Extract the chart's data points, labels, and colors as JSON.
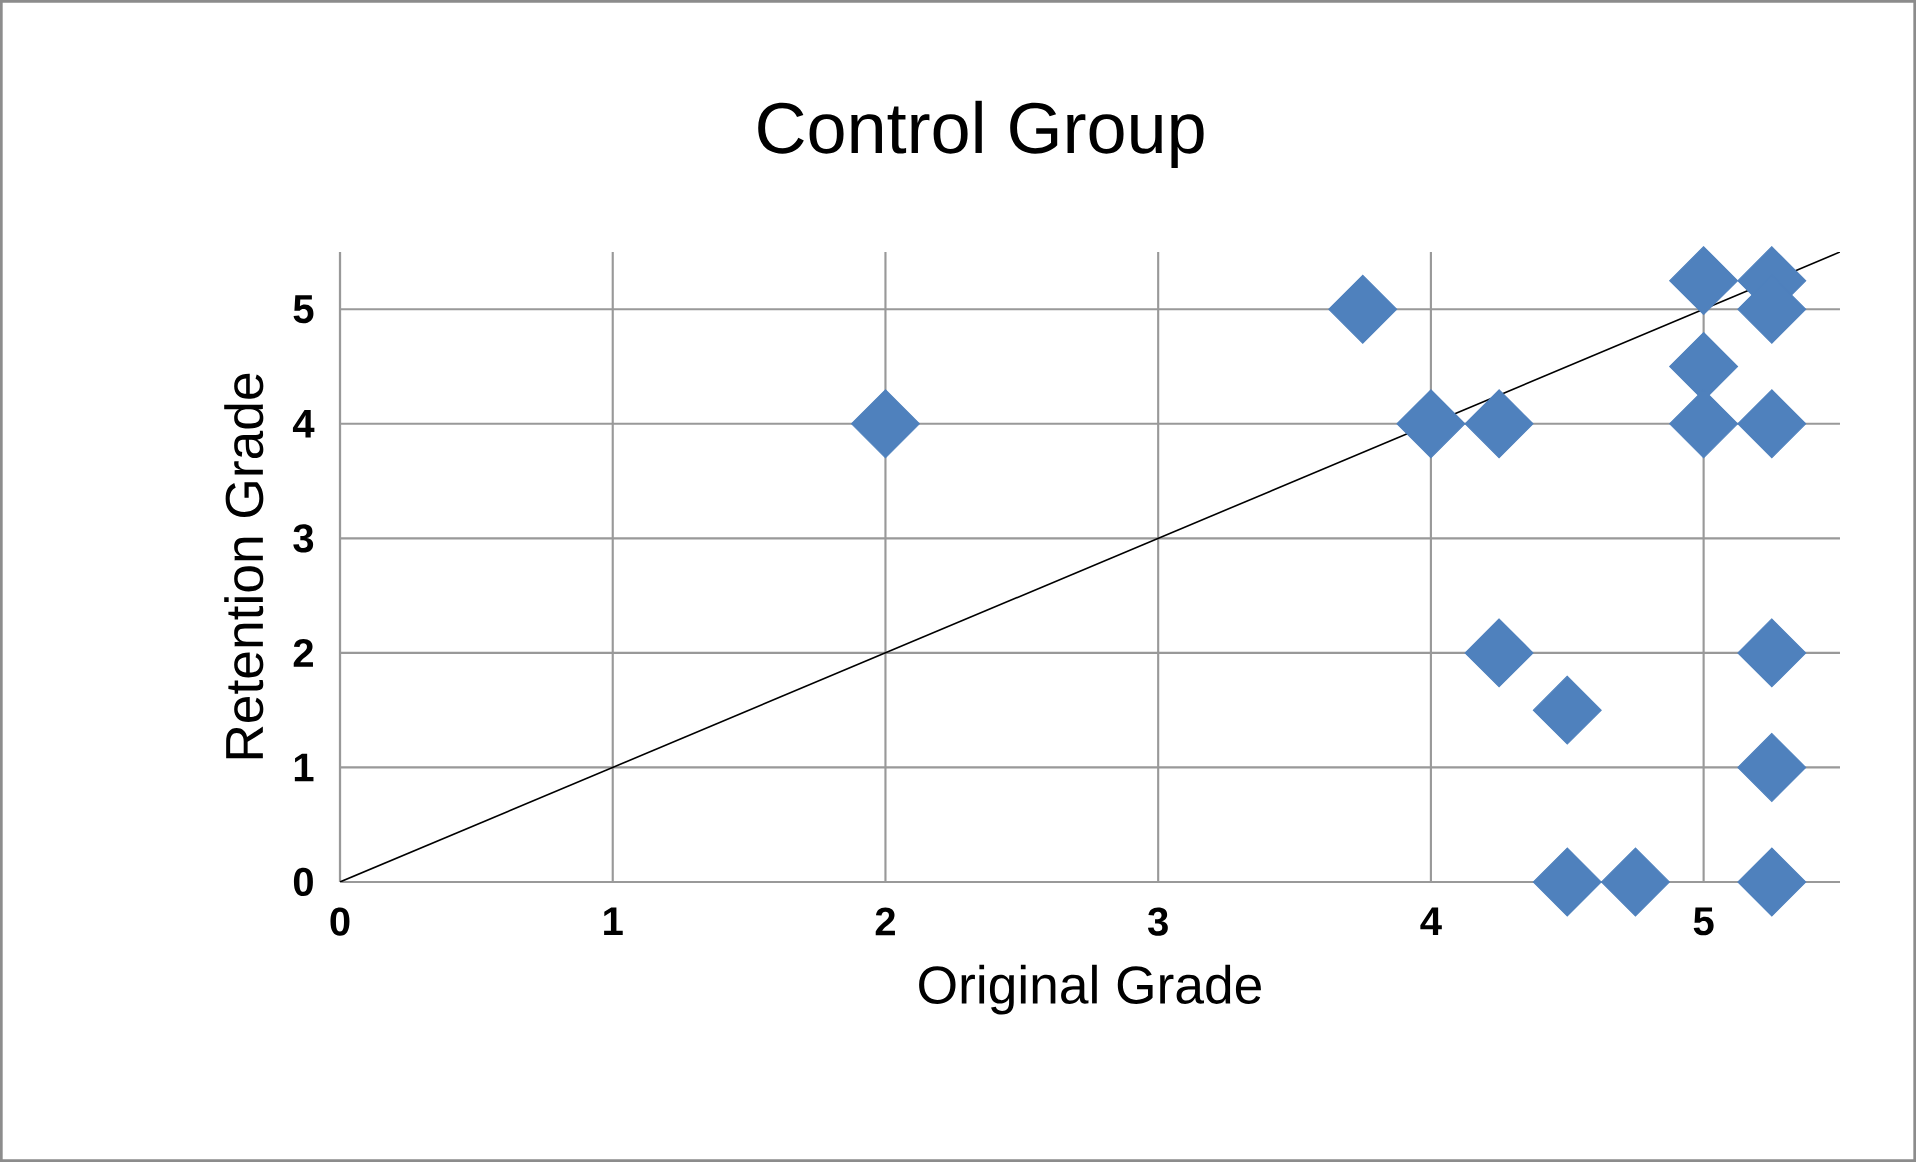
{
  "chart_data": {
    "type": "scatter",
    "title": "Control Group",
    "xlabel": "Original Grade",
    "ylabel": "Retention Grade",
    "xlim": [
      0,
      5.5
    ],
    "ylim": [
      0,
      5.5
    ],
    "xticks": [
      0,
      1,
      2,
      3,
      4,
      5
    ],
    "yticks": [
      0,
      1,
      2,
      3,
      4,
      5
    ],
    "grid": true,
    "series": [
      {
        "type": "scatter",
        "color": "#4f81bd",
        "marker": "diamond",
        "x": [
          2,
          3.75,
          4,
          4.25,
          4.25,
          4.5,
          4.5,
          4.75,
          5,
          5,
          5,
          5.25,
          5.25,
          5.25,
          5.25,
          5.25,
          5.25
        ],
        "values": [
          4,
          5,
          4,
          4,
          2,
          1.5,
          0,
          0,
          5.25,
          4.5,
          4,
          5.25,
          5,
          4,
          2,
          1,
          0
        ]
      },
      {
        "type": "line",
        "color": "#000000",
        "marker": "none",
        "line_style": "solid",
        "x": [
          0,
          5.5
        ],
        "values": [
          0,
          5.5
        ]
      }
    ]
  }
}
